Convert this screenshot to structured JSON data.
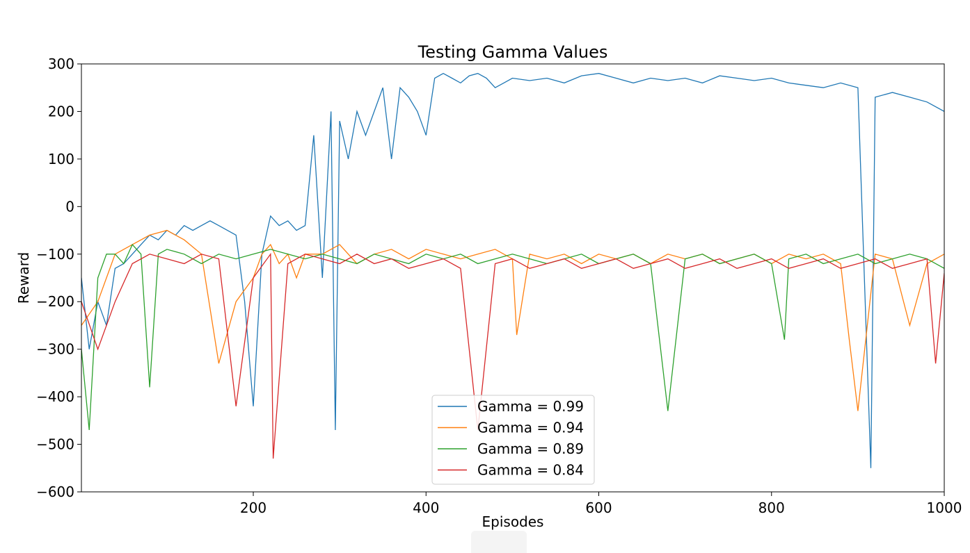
{
  "chart_data": {
    "type": "line",
    "title": "Testing Gamma Values",
    "xlabel": "Episodes",
    "ylabel": "Reward",
    "xlim": [
      1,
      1000
    ],
    "ylim": [
      -600,
      300
    ],
    "xticks": [
      200,
      400,
      600,
      800,
      1000
    ],
    "yticks": [
      -600,
      -500,
      -400,
      -300,
      -200,
      -100,
      0,
      100,
      200,
      300
    ],
    "legend_position": "lower-center",
    "grid": false,
    "series": [
      {
        "name": "Gamma = 0.99",
        "color": "#1f77b4",
        "x": [
          1,
          10,
          20,
          30,
          40,
          50,
          60,
          70,
          80,
          90,
          100,
          110,
          120,
          130,
          140,
          150,
          160,
          170,
          180,
          190,
          200,
          210,
          220,
          230,
          240,
          250,
          260,
          270,
          280,
          290,
          295,
          300,
          310,
          320,
          330,
          340,
          350,
          360,
          370,
          380,
          390,
          400,
          410,
          420,
          430,
          440,
          450,
          460,
          470,
          480,
          490,
          500,
          520,
          540,
          560,
          580,
          600,
          620,
          640,
          660,
          680,
          700,
          720,
          740,
          760,
          780,
          800,
          820,
          840,
          860,
          880,
          900,
          915,
          920,
          940,
          960,
          980,
          1000
        ],
        "y": [
          -150,
          -300,
          -200,
          -250,
          -130,
          -120,
          -100,
          -80,
          -60,
          -70,
          -50,
          -60,
          -40,
          -50,
          -40,
          -30,
          -40,
          -50,
          -60,
          -200,
          -420,
          -100,
          -20,
          -40,
          -30,
          -50,
          -40,
          150,
          -150,
          200,
          -470,
          180,
          100,
          200,
          150,
          200,
          250,
          100,
          250,
          230,
          200,
          150,
          270,
          280,
          270,
          260,
          275,
          280,
          270,
          250,
          260,
          270,
          265,
          270,
          260,
          275,
          280,
          270,
          260,
          270,
          265,
          270,
          260,
          275,
          270,
          265,
          270,
          260,
          255,
          250,
          260,
          250,
          -550,
          230,
          240,
          230,
          220,
          200
        ]
      },
      {
        "name": "Gamma = 0.94",
        "color": "#ff7f0e",
        "x": [
          1,
          20,
          40,
          60,
          80,
          100,
          120,
          140,
          160,
          180,
          200,
          210,
          220,
          230,
          240,
          250,
          260,
          280,
          300,
          320,
          340,
          360,
          380,
          400,
          420,
          440,
          460,
          480,
          500,
          505,
          520,
          540,
          560,
          580,
          600,
          620,
          640,
          660,
          680,
          700,
          720,
          740,
          760,
          780,
          800,
          820,
          840,
          860,
          880,
          890,
          900,
          920,
          940,
          960,
          980,
          1000
        ],
        "y": [
          -250,
          -200,
          -100,
          -80,
          -60,
          -50,
          -70,
          -100,
          -330,
          -200,
          -150,
          -100,
          -80,
          -120,
          -100,
          -150,
          -100,
          -100,
          -80,
          -120,
          -100,
          -90,
          -110,
          -90,
          -100,
          -110,
          -100,
          -90,
          -110,
          -270,
          -100,
          -110,
          -100,
          -120,
          -100,
          -110,
          -100,
          -120,
          -100,
          -110,
          -100,
          -120,
          -110,
          -100,
          -120,
          -100,
          -110,
          -100,
          -120,
          -280,
          -430,
          -100,
          -110,
          -250,
          -120,
          -100
        ]
      },
      {
        "name": "Gamma = 0.89",
        "color": "#2ca02c",
        "x": [
          1,
          10,
          20,
          30,
          40,
          50,
          60,
          70,
          80,
          90,
          100,
          120,
          140,
          160,
          180,
          200,
          220,
          240,
          260,
          280,
          300,
          320,
          340,
          360,
          380,
          400,
          420,
          440,
          460,
          480,
          500,
          520,
          540,
          560,
          580,
          600,
          620,
          640,
          660,
          680,
          700,
          720,
          740,
          760,
          780,
          800,
          815,
          820,
          840,
          860,
          880,
          900,
          920,
          940,
          960,
          980,
          1000
        ],
        "y": [
          -300,
          -470,
          -150,
          -100,
          -100,
          -120,
          -80,
          -100,
          -380,
          -100,
          -90,
          -100,
          -120,
          -100,
          -110,
          -100,
          -90,
          -100,
          -110,
          -100,
          -110,
          -120,
          -100,
          -110,
          -120,
          -100,
          -110,
          -100,
          -120,
          -110,
          -100,
          -110,
          -120,
          -110,
          -100,
          -120,
          -110,
          -100,
          -120,
          -430,
          -110,
          -100,
          -120,
          -110,
          -100,
          -120,
          -280,
          -110,
          -100,
          -120,
          -110,
          -100,
          -120,
          -110,
          -100,
          -110,
          -130
        ]
      },
      {
        "name": "Gamma = 0.84",
        "color": "#d62728",
        "x": [
          1,
          20,
          40,
          60,
          80,
          100,
          120,
          140,
          160,
          180,
          200,
          220,
          223,
          240,
          260,
          280,
          300,
          320,
          340,
          360,
          380,
          400,
          420,
          440,
          460,
          480,
          500,
          520,
          540,
          560,
          580,
          600,
          620,
          640,
          660,
          680,
          700,
          720,
          740,
          760,
          780,
          800,
          820,
          840,
          860,
          880,
          900,
          920,
          940,
          960,
          980,
          990,
          1000
        ],
        "y": [
          -200,
          -300,
          -200,
          -120,
          -100,
          -110,
          -120,
          -100,
          -110,
          -420,
          -150,
          -100,
          -530,
          -120,
          -100,
          -110,
          -120,
          -100,
          -120,
          -110,
          -130,
          -120,
          -110,
          -130,
          -470,
          -120,
          -110,
          -130,
          -120,
          -110,
          -130,
          -120,
          -110,
          -130,
          -120,
          -110,
          -130,
          -120,
          -110,
          -130,
          -120,
          -110,
          -130,
          -120,
          -110,
          -130,
          -120,
          -110,
          -130,
          -120,
          -110,
          -330,
          -140
        ]
      }
    ]
  }
}
